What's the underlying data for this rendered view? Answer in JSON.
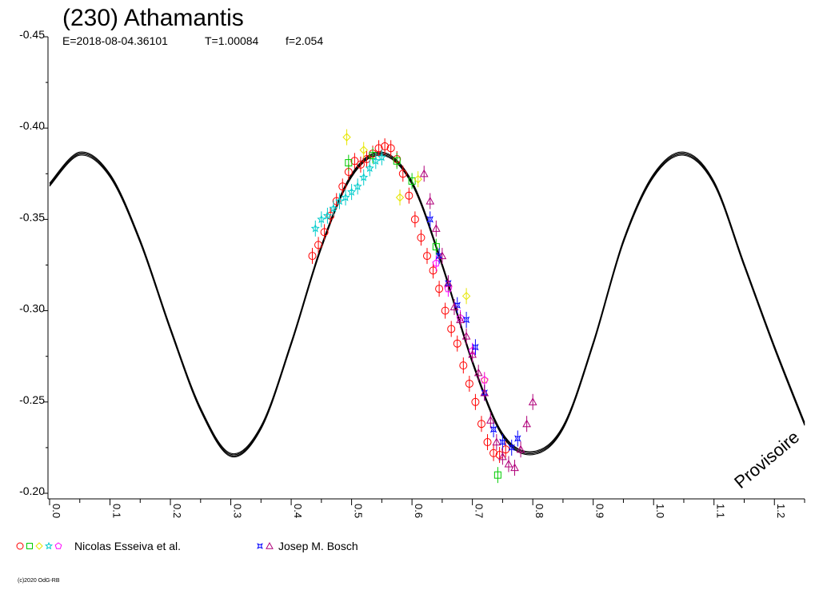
{
  "chart_data": {
    "type": "scatter",
    "title": "(230) Athamantis",
    "subtitle": {
      "epoch": "E=2018-08-04.36101",
      "period": "T=1.00084",
      "f": "f=2.054"
    },
    "xlim": [
      0.0,
      1.25
    ],
    "ylim": [
      -0.45,
      -0.2
    ],
    "y_inverted": true,
    "grid": false,
    "x_ticks": [
      "0.0",
      "0.1",
      "0.2",
      "0.3",
      "0.4",
      "0.5",
      "0.6",
      "0.7",
      "0.8",
      "0.9",
      "1.0",
      "1.1",
      "1.2"
    ],
    "y_ticks": [
      "-0.45",
      "-0.40",
      "-0.35",
      "-0.30",
      "-0.25",
      "-0.20"
    ],
    "model_curve": {
      "color": "#000000",
      "x": [
        0.0,
        0.05,
        0.1,
        0.15,
        0.2,
        0.25,
        0.3,
        0.35,
        0.4,
        0.45,
        0.5,
        0.55,
        0.6,
        0.65,
        0.7,
        0.75,
        0.8,
        0.85,
        0.9,
        0.95,
        1.0,
        1.05,
        1.1,
        1.15,
        1.2,
        1.25
      ],
      "y": [
        -0.369,
        -0.386,
        -0.374,
        -0.338,
        -0.29,
        -0.246,
        -0.221,
        -0.236,
        -0.282,
        -0.335,
        -0.374,
        -0.386,
        -0.37,
        -0.325,
        -0.272,
        -0.232,
        -0.222,
        -0.236,
        -0.282,
        -0.338,
        -0.374,
        -0.386,
        -0.37,
        -0.325,
        -0.28,
        -0.238
      ]
    },
    "series": [
      {
        "group": 0,
        "marker": "circle",
        "color": "#ff0000",
        "x": [
          0.435,
          0.445,
          0.455,
          0.465,
          0.475,
          0.485,
          0.495,
          0.505,
          0.515,
          0.525,
          0.535,
          0.545,
          0.555,
          0.565,
          0.575,
          0.585,
          0.595,
          0.605,
          0.615,
          0.625,
          0.635,
          0.645,
          0.655,
          0.665,
          0.675,
          0.685,
          0.695,
          0.705,
          0.715,
          0.725,
          0.735,
          0.745,
          0.755
        ],
        "y": [
          -0.33,
          -0.336,
          -0.343,
          -0.352,
          -0.36,
          -0.368,
          -0.376,
          -0.382,
          -0.38,
          -0.383,
          -0.386,
          -0.389,
          -0.39,
          -0.389,
          -0.383,
          -0.375,
          -0.363,
          -0.35,
          -0.34,
          -0.33,
          -0.322,
          -0.312,
          -0.3,
          -0.29,
          -0.282,
          -0.27,
          -0.26,
          -0.25,
          -0.238,
          -0.228,
          -0.222,
          -0.221,
          -0.224
        ]
      },
      {
        "group": 0,
        "marker": "square",
        "color": "#00cc00",
        "x": [
          0.495,
          0.535,
          0.575,
          0.6,
          0.64,
          0.742
        ],
        "y": [
          -0.381,
          -0.385,
          -0.382,
          -0.371,
          -0.335,
          -0.21
        ]
      },
      {
        "group": 0,
        "marker": "diamond",
        "color": "#e6e600",
        "x": [
          0.492,
          0.52,
          0.58,
          0.61,
          0.69,
          0.72
        ],
        "y": [
          -0.395,
          -0.388,
          -0.362,
          -0.372,
          -0.308,
          -0.262
        ]
      },
      {
        "group": 0,
        "marker": "star",
        "color": "#00cccc",
        "x": [
          0.44,
          0.45,
          0.46,
          0.47,
          0.48,
          0.49,
          0.5,
          0.51,
          0.52,
          0.53,
          0.54,
          0.55
        ],
        "y": [
          -0.345,
          -0.35,
          -0.352,
          -0.356,
          -0.36,
          -0.362,
          -0.365,
          -0.368,
          -0.373,
          -0.378,
          -0.382,
          -0.384
        ]
      },
      {
        "group": 0,
        "marker": "pentagon",
        "color": "#ff00ff",
        "x": [
          0.64,
          0.66,
          0.68,
          0.7,
          0.72
        ],
        "y": [
          -0.326,
          -0.312,
          -0.296,
          -0.278,
          -0.262
        ]
      },
      {
        "group": 1,
        "marker": "star4",
        "color": "#0000ff",
        "x": [
          0.63,
          0.645,
          0.66,
          0.675,
          0.69,
          0.705,
          0.72,
          0.735,
          0.75,
          0.765,
          0.775
        ],
        "y": [
          -0.35,
          -0.33,
          -0.315,
          -0.303,
          -0.295,
          -0.28,
          -0.255,
          -0.235,
          -0.228,
          -0.225,
          -0.23
        ]
      },
      {
        "group": 1,
        "marker": "triangle",
        "color": "#b0007a",
        "x": [
          0.62,
          0.63,
          0.64,
          0.65,
          0.66,
          0.67,
          0.68,
          0.69,
          0.7,
          0.71,
          0.72,
          0.73,
          0.74,
          0.75,
          0.76,
          0.77,
          0.78,
          0.79,
          0.8
        ],
        "y": [
          -0.375,
          -0.36,
          -0.345,
          -0.33,
          -0.315,
          -0.302,
          -0.295,
          -0.286,
          -0.276,
          -0.266,
          -0.255,
          -0.24,
          -0.228,
          -0.22,
          -0.216,
          -0.214,
          -0.224,
          -0.238,
          -0.25
        ]
      }
    ],
    "legend": {
      "placement": "bottom",
      "entries": [
        {
          "label": "Nicolas Esseiva et al.",
          "markers": [
            "circle",
            "square",
            "diamond",
            "star",
            "pentagon"
          ],
          "colors": [
            "#ff0000",
            "#00cc00",
            "#e6e600",
            "#00cccc",
            "#ff00ff"
          ]
        },
        {
          "label": "Josep M. Bosch",
          "markers": [
            "star4",
            "triangle"
          ],
          "colors": [
            "#0000ff",
            "#b0007a"
          ]
        }
      ]
    },
    "watermark": "Provisoire",
    "copyright": "(c)2020 OdG-RB"
  }
}
